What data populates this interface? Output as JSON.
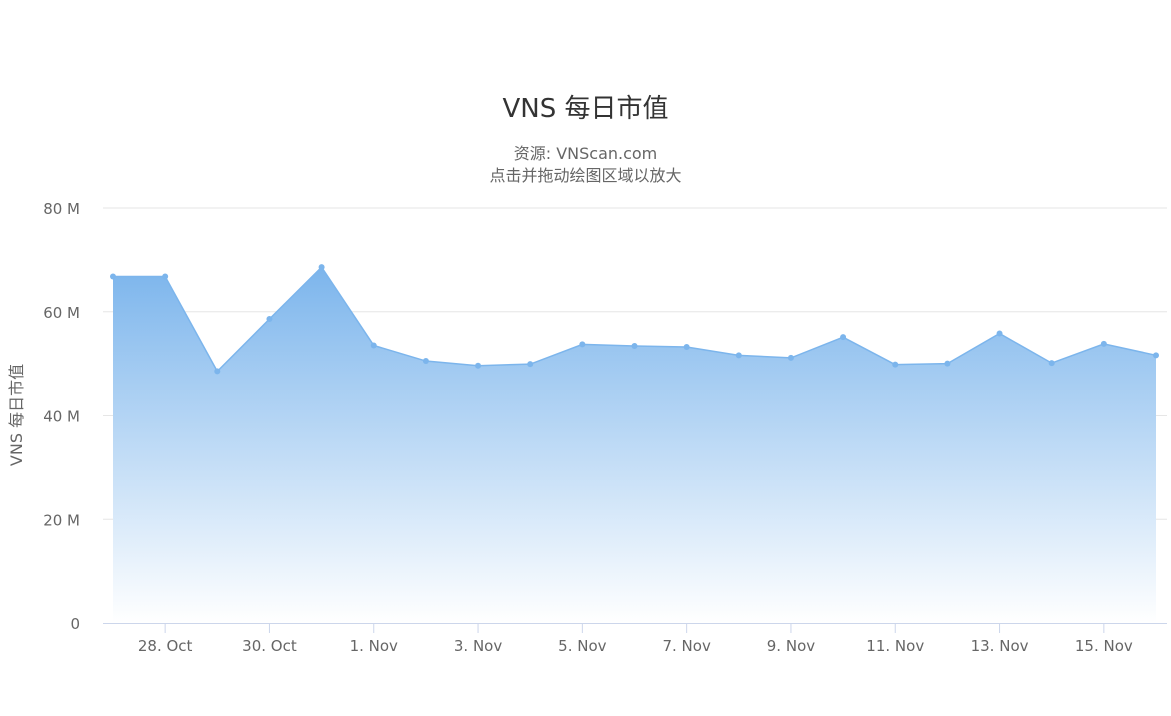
{
  "chart_data": {
    "type": "area",
    "title": "VNS 每日市值",
    "subtitle_lines": [
      "资源: VNScan.com",
      "点击并拖动绘图区域以放大"
    ],
    "ylabel": "VNS 每日市值",
    "xlabel": "",
    "ylim": [
      0,
      80000000
    ],
    "y_tick_labels": [
      "0",
      "20 M",
      "40 M",
      "60 M",
      "80 M"
    ],
    "y_tick_values": [
      0,
      20000000,
      40000000,
      60000000,
      80000000
    ],
    "x_tick_labels": [
      "28. Oct",
      "30. Oct",
      "1. Nov",
      "3. Nov",
      "5. Nov",
      "7. Nov",
      "9. Nov",
      "11. Nov",
      "13. Nov",
      "15. Nov"
    ],
    "x_tick_dates": [
      "2019-10-28",
      "2019-10-30",
      "2019-11-01",
      "2019-11-03",
      "2019-11-05",
      "2019-11-07",
      "2019-11-09",
      "2019-11-11",
      "2019-11-13",
      "2019-11-15"
    ],
    "grid": true,
    "legend": false,
    "series": [
      {
        "x": [
          "2019-10-27",
          "2019-10-28",
          "2019-10-29",
          "2019-10-30",
          "2019-10-31",
          "2019-11-01",
          "2019-11-02",
          "2019-11-03",
          "2019-11-04",
          "2019-11-05",
          "2019-11-06",
          "2019-11-07",
          "2019-11-08",
          "2019-11-09",
          "2019-11-10",
          "2019-11-11",
          "2019-11-12",
          "2019-11-13",
          "2019-11-14",
          "2019-11-15",
          "2019-11-16"
        ],
        "values": [
          66800000,
          66800000,
          48500000,
          58600000,
          68600000,
          53500000,
          50500000,
          49600000,
          49900000,
          53700000,
          53400000,
          53200000,
          51600000,
          51100000,
          55100000,
          49800000,
          50000000,
          55800000,
          50100000,
          53800000,
          51600000
        ]
      }
    ],
    "colors": {
      "line": "#7cb5ec",
      "area_top": "#7cb5ec",
      "area_bottom": "#ffffff",
      "grid": "#e6e6e6",
      "axis_line": "#ccd6eb",
      "tick_text": "#666666",
      "title_text": "#333333"
    }
  }
}
